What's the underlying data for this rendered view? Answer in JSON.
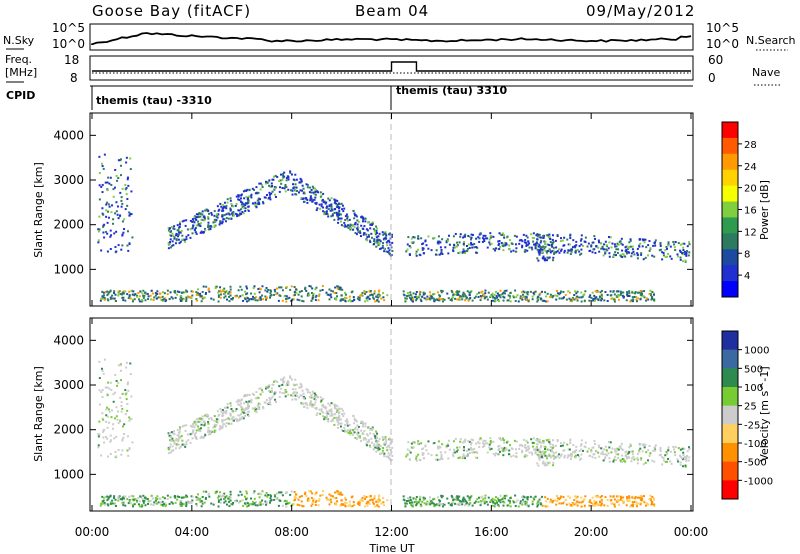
{
  "header": {
    "station": "Goose Bay (fitACF)",
    "beam": "Beam 04",
    "date": "09/May/2012"
  },
  "noise_panel": {
    "left_label": "N.Sky",
    "right_label": "N.Search",
    "y_ticks": [
      "10^5",
      "10^0"
    ],
    "right_ticks": [
      "10^5",
      "10^0"
    ]
  },
  "freq_panel": {
    "left_label_line1": "Freq.",
    "left_label_line2": "[MHz]",
    "right_label": "Nave",
    "y_ticks": [
      "18",
      "8"
    ],
    "right_ticks": [
      "60",
      "0"
    ]
  },
  "cpid_panel": {
    "label": "CPID",
    "segments": [
      {
        "text": "themis (tau) -3310",
        "start_hour": 0
      },
      {
        "text": "themis (tau) 3310",
        "start_hour": 12
      }
    ]
  },
  "x_axis": {
    "label": "Time UT",
    "ticks": [
      "00:00",
      "04:00",
      "08:00",
      "12:00",
      "16:00",
      "20:00",
      "00:00"
    ]
  },
  "power_panel": {
    "ylabel": "Slant Range [km]",
    "colorbar_label": "Power [dB]",
    "colorbar_ticks": [
      "28",
      "24",
      "20",
      "16",
      "12",
      "8",
      "4"
    ],
    "colorbar_colors": [
      "#ff0000",
      "#ff5a00",
      "#ff9a00",
      "#ffd200",
      "#f5ff00",
      "#7fcf3f",
      "#2e9b4f",
      "#2c7a60",
      "#1c4aa0",
      "#1f2fd0",
      "#0000ff"
    ]
  },
  "velocity_panel": {
    "ylabel": "Slant Range [km]",
    "colorbar_label": "Velocity [m s^-1]",
    "colorbar_ticks": [
      "1000",
      "500",
      "100",
      "25",
      "-25",
      "-100",
      "-500",
      "-1000"
    ],
    "colorbar_colors": [
      "#1f2fa0",
      "#3a6aa0",
      "#2f8a50",
      "#77cc33",
      "#cccccc",
      "#ffd060",
      "#ff9000",
      "#ff5000",
      "#ff0000"
    ]
  },
  "chart_data": {
    "type": "heatmap",
    "title": "Goose Bay (fitACF)  Beam 04  09/May/2012",
    "xlabel": "Time UT",
    "ylabel": "Slant Range [km]",
    "xlim_hours": [
      0,
      24
    ],
    "ylim_km": [
      180,
      4500
    ],
    "y_ticks": [
      1000,
      2000,
      3000,
      4000
    ],
    "x_ticks_hours": [
      0,
      4,
      8,
      12,
      16,
      20,
      24
    ],
    "features": [
      {
        "name": "ground scatter band",
        "hours": [
          0.3,
          22.5
        ],
        "range_km": [
          300,
          600
        ]
      },
      {
        "name": "rising ionospheric arc",
        "hours": [
          3.0,
          12.0
        ],
        "range_km_start": 1700,
        "range_km_peak": 3100,
        "peak_hour": 7.8,
        "range_km_end": 1500
      },
      {
        "name": "evening band",
        "hours": [
          12.5,
          24.0
        ],
        "range_km": [
          1300,
          1900
        ]
      }
    ],
    "frequency_mhz": {
      "baseline": 10,
      "raised_hours": [
        12.0,
        13.0
      ],
      "raised_value": 15
    },
    "cpid": [
      {
        "label": "themis (tau) -3310",
        "start_hour": 0,
        "end_hour": 12
      },
      {
        "label": "themis (tau) 3310",
        "start_hour": 12,
        "end_hour": 24
      }
    ]
  }
}
